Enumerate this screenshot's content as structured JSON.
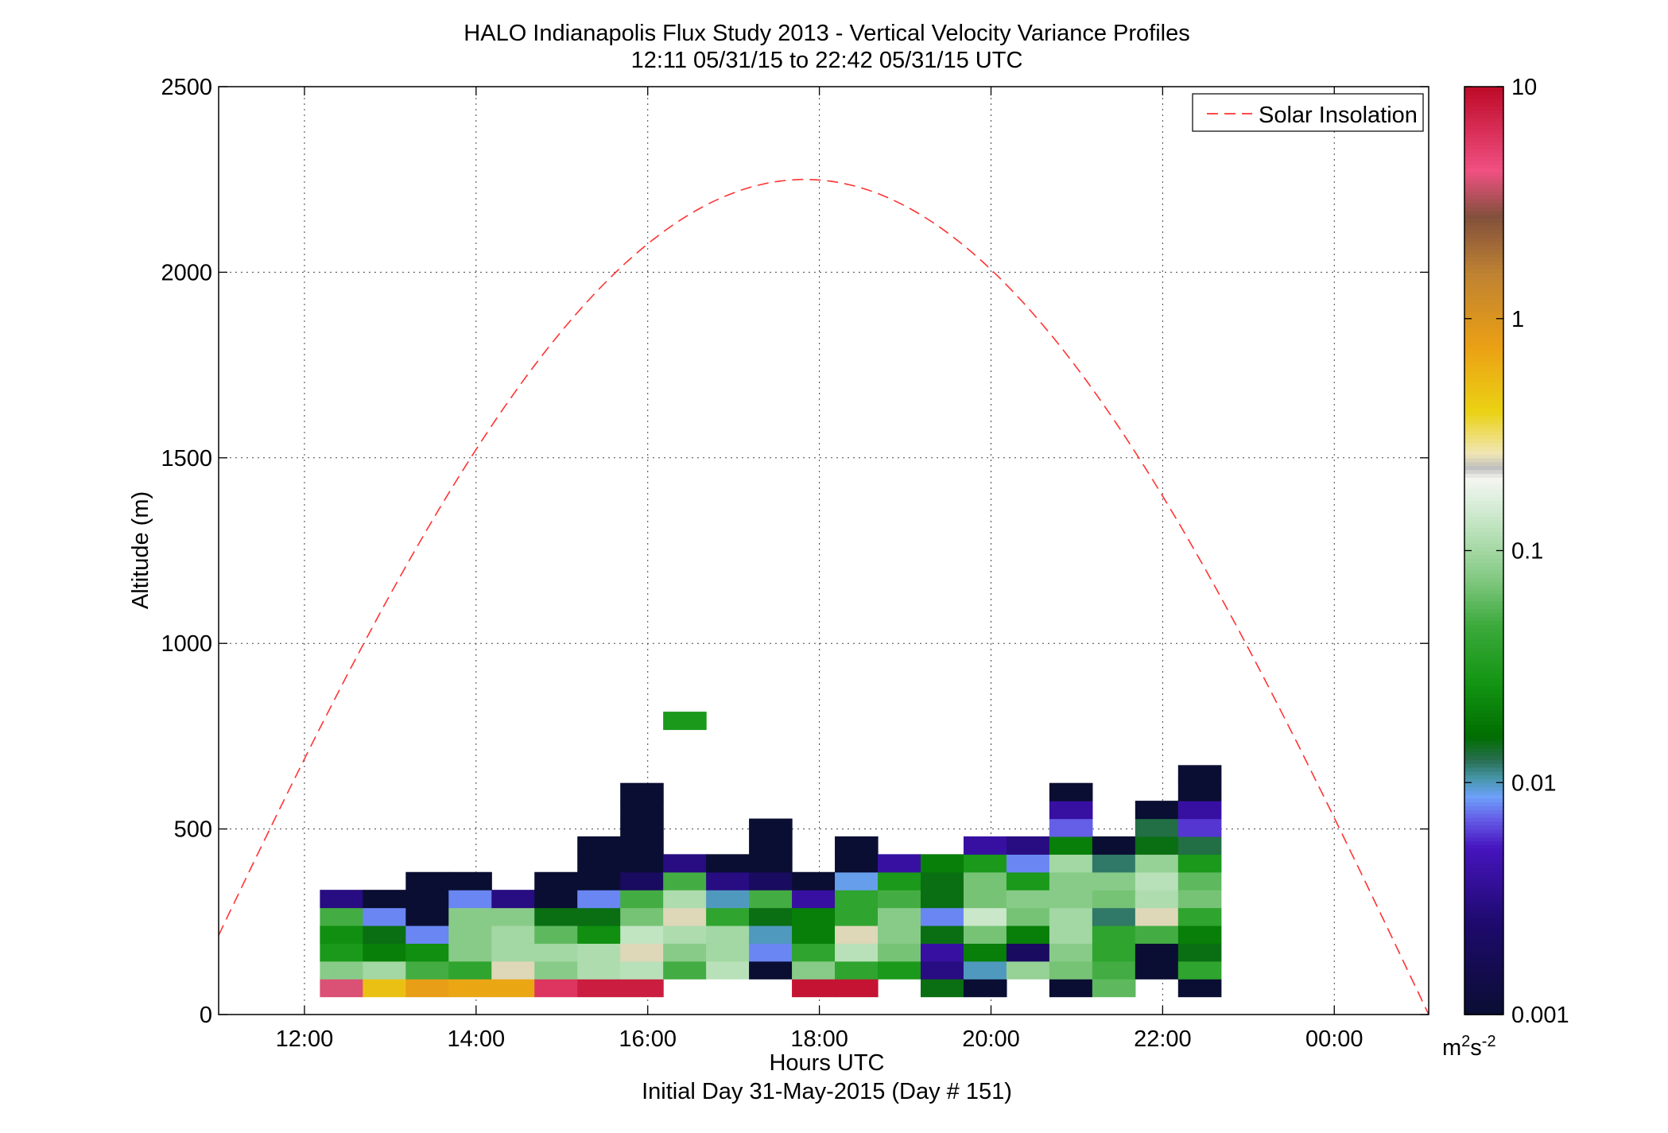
{
  "chart_data": {
    "type": "heatmap",
    "title": "HALO Indianapolis Flux Study 2013 - Vertical Velocity Variance Profiles",
    "subtitle": "12:11 05/31/15 to 22:42 05/31/15  UTC",
    "xlabel": "Hours UTC",
    "xlabel2": "Initial Day 31-May-2015 (Day # 151)",
    "ylabel": "Altitude (m)",
    "x_range_hours": [
      11,
      25.1
    ],
    "ylim": [
      0,
      2500
    ],
    "x_ticks": [
      {
        "value": 12,
        "label": "12:00"
      },
      {
        "value": 14,
        "label": "14:00"
      },
      {
        "value": 16,
        "label": "16:00"
      },
      {
        "value": 18,
        "label": "18:00"
      },
      {
        "value": 20,
        "label": "20:00"
      },
      {
        "value": 22,
        "label": "22:00"
      },
      {
        "value": 24,
        "label": "00:00"
      }
    ],
    "y_ticks": [
      0,
      500,
      1000,
      1500,
      2000,
      2500
    ],
    "grid": true,
    "legend": {
      "placement": "top-right",
      "entries": [
        {
          "name": "Solar Insolation",
          "color": "#ff3333",
          "style": "dashed"
        }
      ]
    },
    "solar_insolation": {
      "peak_time_hours": 17.7,
      "peak_altitude": 2250,
      "zero_times_hours": [
        10.56,
        25.1
      ]
    },
    "colorbar": {
      "scale": "log",
      "range": [
        0.001,
        10
      ],
      "ticks": [
        {
          "value": 0.001,
          "label": "0.001"
        },
        {
          "value": 0.01,
          "label": "0.01"
        },
        {
          "value": 0.1,
          "label": "0.1"
        },
        {
          "value": 1,
          "label": "1"
        },
        {
          "value": 10,
          "label": "10"
        }
      ],
      "unit_base": "m",
      "unit_sup1": "2",
      "unit_mid": "s",
      "unit_sup2": "-2"
    },
    "bin": {
      "time_width_hours": 0.5,
      "alt_height_m": 48,
      "alt_start_m": 48
    },
    "columns": [
      {
        "t": 12.18,
        "values": [
          4,
          0.08,
          0.03,
          0.025,
          0.05,
          0.003
        ]
      },
      {
        "t": 12.68,
        "values": [
          0.5,
          0.1,
          0.02,
          0.015,
          0.008,
          0.001
        ]
      },
      {
        "t": 13.18,
        "values": [
          0.8,
          0.05,
          0.025,
          0.008,
          0.001,
          0.001,
          0.001
        ]
      },
      {
        "t": 13.68,
        "values": [
          0.7,
          0.04,
          0.08,
          0.08,
          0.08,
          0.008,
          0.001
        ]
      },
      {
        "t": 14.18,
        "values": [
          0.7,
          0.25,
          0.1,
          0.1,
          0.08,
          0.003
        ]
      },
      {
        "t": 14.68,
        "values": [
          6,
          0.08,
          0.1,
          0.06,
          0.015,
          0.001,
          0.001
        ]
      },
      {
        "t": 15.18,
        "values": [
          8,
          0.11,
          0.11,
          0.025,
          0.015,
          0.008,
          0.001,
          0.001,
          0.001
        ]
      },
      {
        "t": 15.68,
        "values": [
          8,
          0.12,
          0.25,
          0.13,
          0.07,
          0.05,
          0.002,
          0.001,
          0.001,
          0.001,
          0.001,
          0.001
        ]
      },
      {
        "t": 16.18,
        "values": [
          null,
          0.05,
          0.08,
          0.11,
          0.25,
          0.11,
          0.05,
          0.003,
          null,
          null,
          null,
          null,
          null,
          null,
          null,
          0.03
        ]
      },
      {
        "t": 16.68,
        "values": [
          null,
          0.12,
          0.1,
          0.1,
          0.04,
          0.01,
          0.003,
          0.001
        ]
      },
      {
        "t": 17.18,
        "values": [
          null,
          0.001,
          0.008,
          0.01,
          0.015,
          0.05,
          0.002,
          0.001,
          0.001,
          0.001
        ]
      },
      {
        "t": 17.68,
        "values": [
          9,
          0.08,
          0.04,
          0.02,
          0.02,
          0.004,
          0.001
        ]
      },
      {
        "t": 18.18,
        "values": [
          9,
          0.04,
          0.12,
          0.25,
          0.04,
          0.04,
          0.009,
          0.001,
          0.001
        ]
      },
      {
        "t": 18.68,
        "values": [
          null,
          0.03,
          0.07,
          0.08,
          0.08,
          0.05,
          0.03,
          0.004
        ]
      },
      {
        "t": 19.18,
        "values": [
          0.015,
          0.003,
          0.004,
          0.015,
          0.008,
          0.015,
          0.015,
          0.02
        ]
      },
      {
        "t": 19.68,
        "values": [
          0.001,
          0.01,
          0.02,
          0.07,
          0.14,
          0.07,
          0.07,
          0.03,
          0.004
        ]
      },
      {
        "t": 20.18,
        "values": [
          null,
          0.09,
          0.002,
          0.02,
          0.07,
          0.08,
          0.03,
          0.008,
          0.003
        ]
      },
      {
        "t": 20.68,
        "values": [
          0.001,
          0.07,
          0.08,
          0.1,
          0.1,
          0.08,
          0.08,
          0.1,
          0.02,
          0.007,
          0.004,
          0.001
        ]
      },
      {
        "t": 21.18,
        "values": [
          0.06,
          0.05,
          0.04,
          0.04,
          0.012,
          0.07,
          0.08,
          0.012,
          0.001
        ]
      },
      {
        "t": 21.68,
        "values": [
          null,
          0.001,
          0.001,
          0.05,
          0.25,
          0.11,
          0.12,
          0.09,
          0.015,
          0.013,
          0.001
        ]
      },
      {
        "t": 22.18,
        "values": [
          0.001,
          0.04,
          0.015,
          0.02,
          0.04,
          0.07,
          0.06,
          0.03,
          0.013,
          0.006,
          0.004,
          0.001,
          0.001
        ]
      }
    ]
  }
}
